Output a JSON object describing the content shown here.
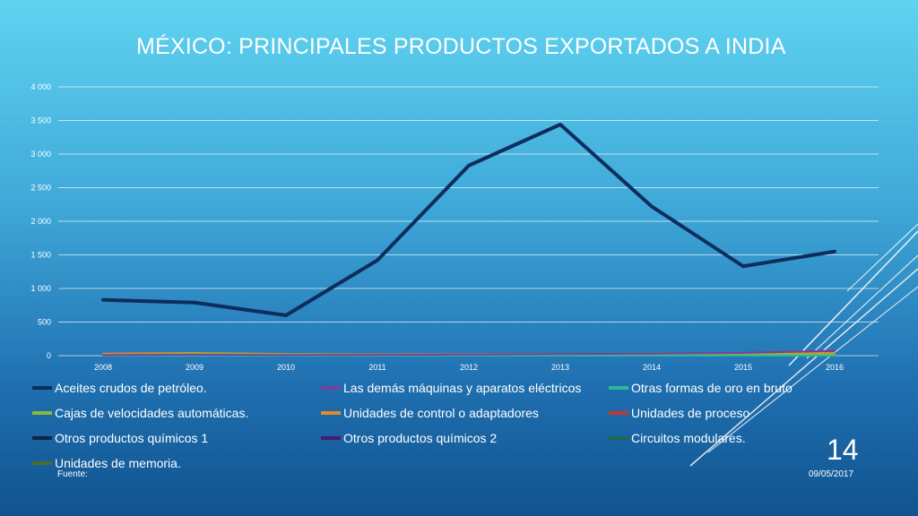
{
  "title": "MÉXICO: PRINCIPALES PRODUCTOS EXPORTADOS A INDIA",
  "slide_number": "14",
  "date": "09/05/2017",
  "source_label": "Fuente:",
  "chart_data": {
    "type": "line",
    "x": [
      "2008",
      "2009",
      "2010",
      "2011",
      "2012",
      "2013",
      "2014",
      "2015",
      "2016"
    ],
    "ylim": [
      0,
      4000
    ],
    "yticks": [
      0,
      500,
      1000,
      1500,
      2000,
      2500,
      3000,
      3500,
      4000
    ],
    "ytick_labels": [
      "0",
      "500",
      "1 000",
      "1 500",
      "2 000",
      "2 500",
      "3 000",
      "3 500",
      "4 000"
    ],
    "grid": true,
    "legend_position": "bottom",
    "series": [
      {
        "name": "Aceites crudos de petróleo.",
        "color": "#0d2d5e",
        "width": 4,
        "values": [
          830,
          790,
          600,
          1420,
          2830,
          3440,
          2220,
          1330,
          1550
        ]
      },
      {
        "name": "Las demás máquinas y aparatos eléctricos",
        "color": "#7a3fa0",
        "width": 2,
        "values": [
          10,
          15,
          10,
          12,
          15,
          25,
          30,
          40,
          70
        ]
      },
      {
        "name": "Otras formas de oro en bruto",
        "color": "#2bb89a",
        "width": 2,
        "values": [
          0,
          0,
          0,
          0,
          0,
          0,
          0,
          0,
          0
        ]
      },
      {
        "name": "Cajas de velocidades automáticas.",
        "color": "#8cb83a",
        "width": 2,
        "values": [
          5,
          30,
          20,
          15,
          10,
          15,
          20,
          25,
          20
        ]
      },
      {
        "name": "Unidades de control o adaptadores",
        "color": "#e08a2c",
        "width": 2,
        "values": [
          30,
          40,
          25,
          20,
          20,
          25,
          30,
          35,
          40
        ]
      },
      {
        "name": "Unidades de proceso",
        "color": "#c0392b",
        "width": 2,
        "values": [
          5,
          5,
          5,
          5,
          10,
          15,
          25,
          40,
          75
        ]
      },
      {
        "name": "Otros productos químicos 1",
        "color": "#12243f",
        "width": 2,
        "values": [
          10,
          10,
          10,
          10,
          10,
          15,
          20,
          25,
          30
        ]
      },
      {
        "name": "Otros productos químicos 2",
        "color": "#4a1a6e",
        "width": 2,
        "values": [
          5,
          5,
          5,
          8,
          10,
          12,
          15,
          20,
          25
        ]
      },
      {
        "name": "Circuitos modulares.",
        "color": "#1e6b4a",
        "width": 2,
        "values": [
          5,
          10,
          10,
          10,
          10,
          10,
          15,
          15,
          20
        ]
      },
      {
        "name": "Unidades de memoria.",
        "color": "#4f6b2a",
        "width": 2,
        "values": [
          10,
          20,
          15,
          15,
          15,
          20,
          20,
          20,
          25
        ]
      }
    ]
  }
}
